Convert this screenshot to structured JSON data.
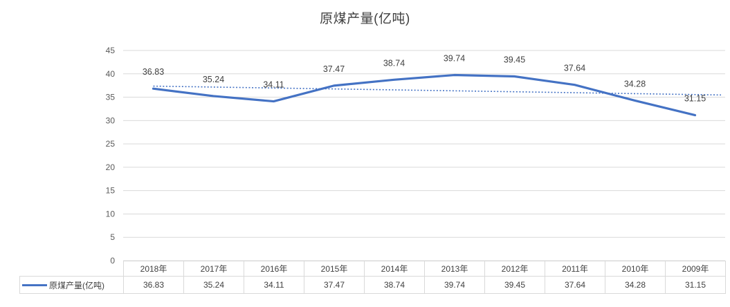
{
  "title": "原煤产量(亿吨)",
  "colors": {
    "line": "#4472C4",
    "trendline": "#4472C4",
    "gridline": "#D9D9D9",
    "axis_text": "#595959",
    "label_text": "#404040",
    "table_border": "#D9D9D9",
    "table_text": "#404040"
  },
  "chart_data": {
    "type": "line",
    "title": "原煤产量(亿吨)",
    "categories": [
      "2018年",
      "2017年",
      "2016年",
      "2015年",
      "2014年",
      "2013年",
      "2012年",
      "2011年",
      "2010年",
      "2009年"
    ],
    "series": [
      {
        "name": "原煤产量(亿吨)",
        "values": [
          36.83,
          35.24,
          34.11,
          37.47,
          38.74,
          39.74,
          39.45,
          37.64,
          34.28,
          31.15
        ]
      }
    ],
    "yticks": [
      0,
      5,
      10,
      15,
      20,
      25,
      30,
      35,
      40,
      45
    ],
    "ylim": [
      0,
      45
    ],
    "ytick_interval": 5,
    "grid": true,
    "data_labels": true,
    "data_table": true,
    "legend_position": "data-table-left",
    "trendline": {
      "type": "linear",
      "style": "dotted",
      "start": 37.37,
      "end": 35.56
    }
  }
}
